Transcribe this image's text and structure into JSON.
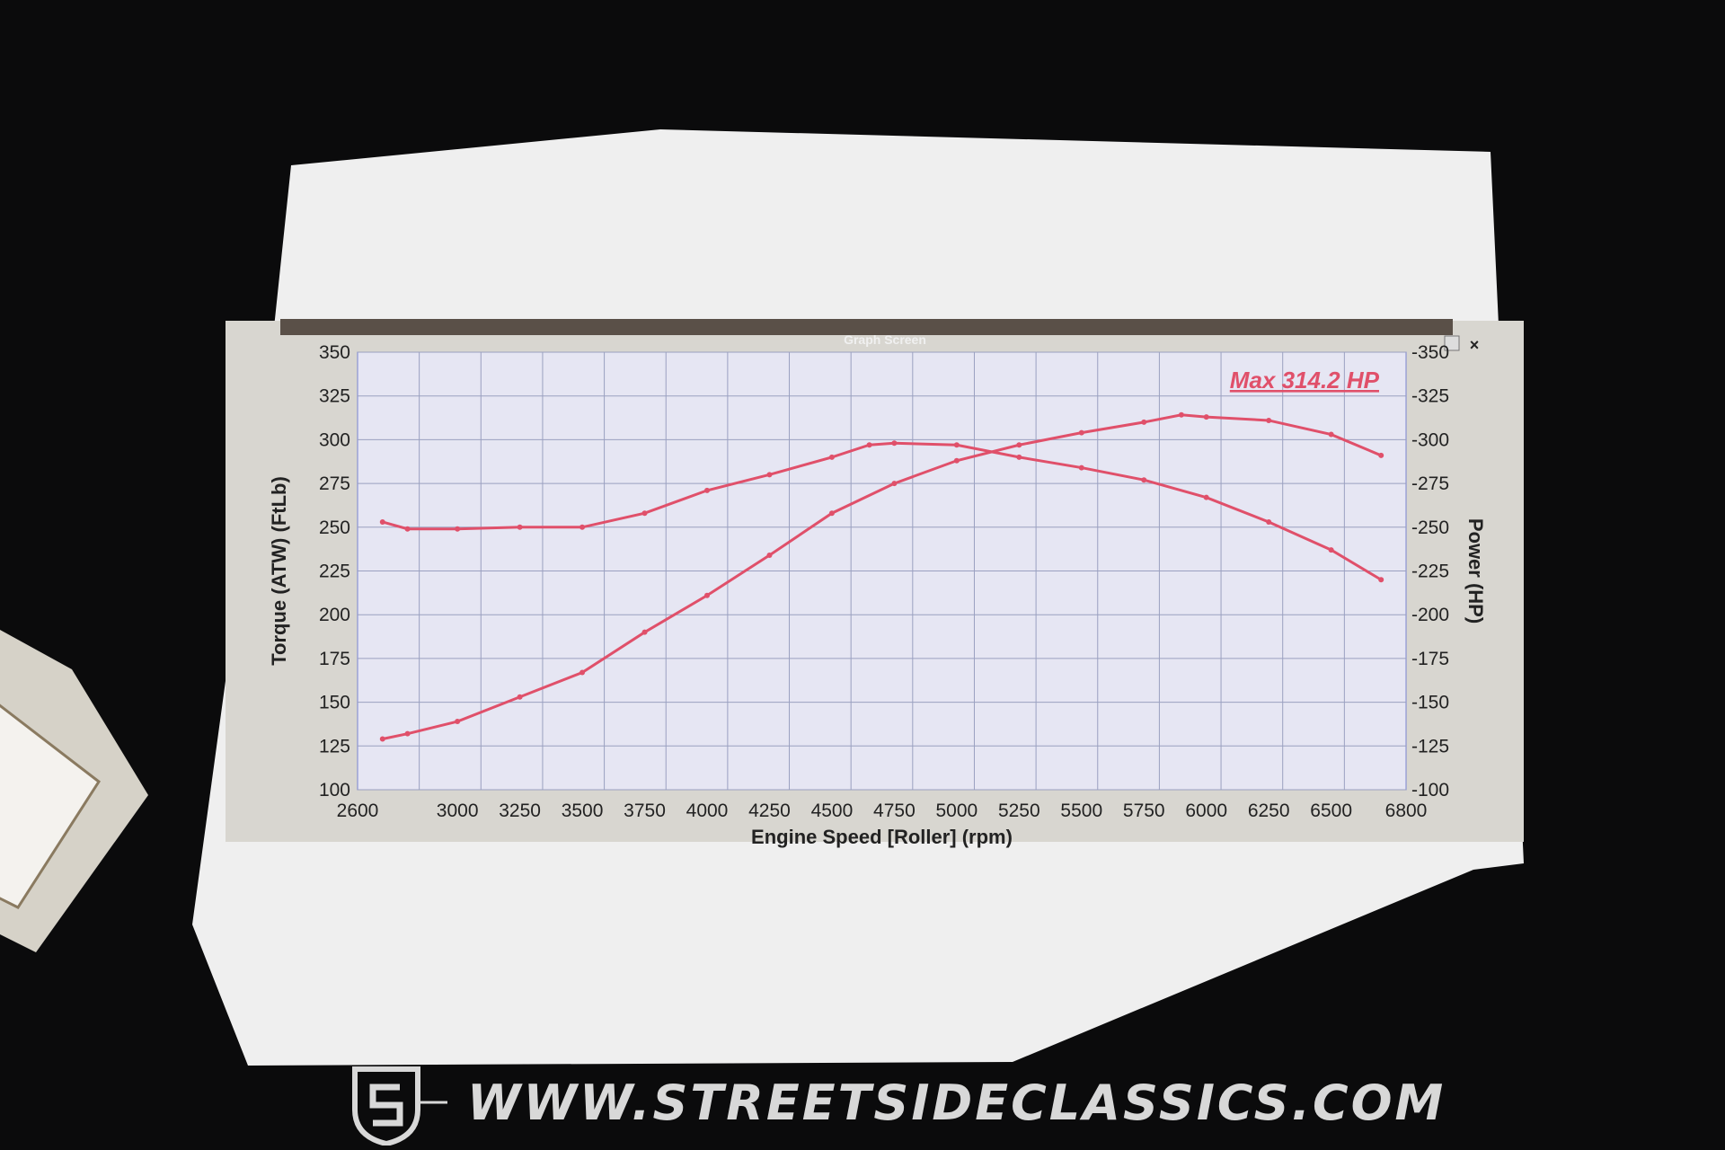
{
  "window": {
    "title": "Graph Screen",
    "controls": [
      "restore-icon",
      "close-icon"
    ]
  },
  "watermark": {
    "text": "WWW.STREETSIDECLASSICS.COM"
  },
  "colors": {
    "curve": "#e0506a",
    "grid": "#9aa0c0",
    "plot_bg": "#e6e6f3",
    "titlebar": "#5a5048"
  },
  "chart_data": {
    "type": "line",
    "title": "",
    "annotation": "Max 314.2 HP",
    "xlabel": "Engine Speed [Roller] (rpm)",
    "ylabel": "Torque (ATW) (FtLb)",
    "y2label": "Power (HP)",
    "xlim": [
      2600,
      6800
    ],
    "ylim": [
      100,
      350
    ],
    "y2lim": [
      100,
      350
    ],
    "grid": true,
    "xticks": [
      "2600",
      "3000",
      "3250",
      "3500",
      "3750",
      "4000",
      "4250",
      "4500",
      "4750",
      "5000",
      "5250",
      "5500",
      "5750",
      "6000",
      "6250",
      "6500",
      "6800"
    ],
    "yticks": [
      "100",
      "125",
      "150",
      "175",
      "200",
      "225",
      "250",
      "275",
      "300",
      "325",
      "350"
    ],
    "y2ticks": [
      "-100",
      "-125",
      "-150",
      "-175",
      "-200",
      "-225",
      "-250",
      "-275",
      "-300",
      "-325",
      "-350"
    ],
    "series": [
      {
        "axis": "left",
        "x": [
          2700,
          2800,
          3000,
          3250,
          3500,
          3750,
          4000,
          4250,
          4500,
          4650,
          4750,
          5000,
          5250,
          5500,
          5750,
          6000,
          6250,
          6500,
          6700
        ],
        "y": [
          253,
          249,
          249,
          250,
          250,
          258,
          271,
          280,
          290,
          297,
          298,
          297,
          290,
          284,
          277,
          267,
          253,
          237,
          220
        ]
      },
      {
        "axis": "right",
        "x": [
          2700,
          2800,
          3000,
          3250,
          3500,
          3750,
          4000,
          4250,
          4500,
          4750,
          5000,
          5250,
          5500,
          5750,
          5900,
          6000,
          6250,
          6500,
          6700
        ],
        "y": [
          129,
          132,
          139,
          153,
          167,
          190,
          211,
          234,
          258,
          275,
          288,
          297,
          304,
          310,
          314.2,
          313,
          311,
          303,
          291
        ]
      }
    ]
  }
}
